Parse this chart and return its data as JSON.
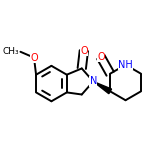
{
  "bg_color": "#ffffff",
  "bond_color": "#000000",
  "atom_colors": {
    "O": "#ff0000",
    "N": "#0000ff",
    "C": "#000000"
  },
  "line_width": 1.4,
  "font_size": 7.0,
  "figsize": [
    1.52,
    1.52
  ],
  "dpi": 100
}
